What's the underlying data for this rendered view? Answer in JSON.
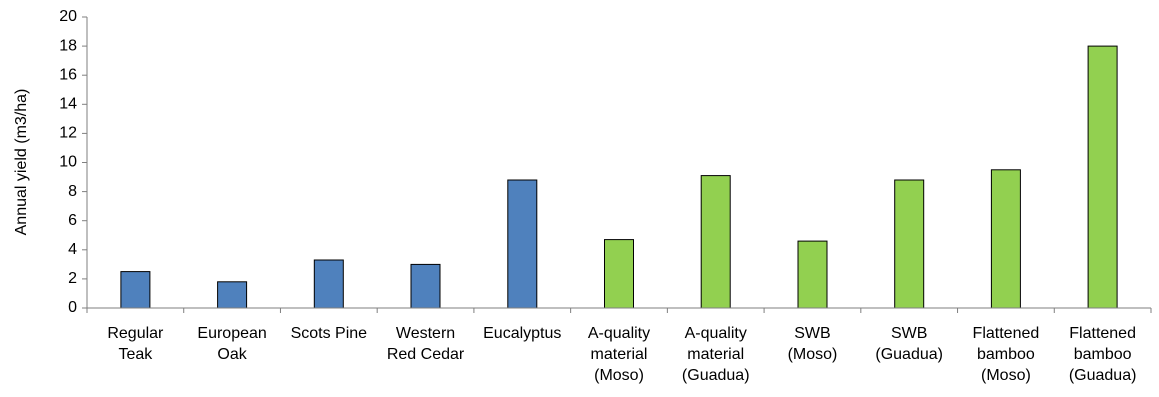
{
  "chart_data": {
    "type": "bar",
    "title": "",
    "xlabel": "",
    "ylabel": "Annual yield (m3/ha)",
    "ylim": [
      0,
      20
    ],
    "yticks": [
      0,
      2,
      4,
      6,
      8,
      10,
      12,
      14,
      16,
      18,
      20
    ],
    "grid": false,
    "legend": "none",
    "categories": [
      [
        "Regular",
        "Teak"
      ],
      [
        "European",
        "Oak"
      ],
      [
        "Scots Pine"
      ],
      [
        "Western",
        "Red Cedar"
      ],
      [
        "Eucalyptus"
      ],
      [
        "A-quality",
        "material",
        "(Moso)"
      ],
      [
        "A-quality",
        "material",
        "(Guadua)"
      ],
      [
        "SWB",
        "(Moso)"
      ],
      [
        "SWB",
        "(Guadua)"
      ],
      [
        "Flattened",
        "bamboo",
        "(Moso)"
      ],
      [
        "Flattened",
        "bamboo",
        "(Guadua)"
      ]
    ],
    "values": [
      2.5,
      1.8,
      3.3,
      3.0,
      8.8,
      4.7,
      9.1,
      4.6,
      8.8,
      9.5,
      18.0
    ],
    "bar_colors": [
      "#4f81bd",
      "#4f81bd",
      "#4f81bd",
      "#4f81bd",
      "#4f81bd",
      "#92d050",
      "#92d050",
      "#92d050",
      "#92d050",
      "#92d050",
      "#92d050"
    ],
    "bar_outline": "#000000"
  }
}
